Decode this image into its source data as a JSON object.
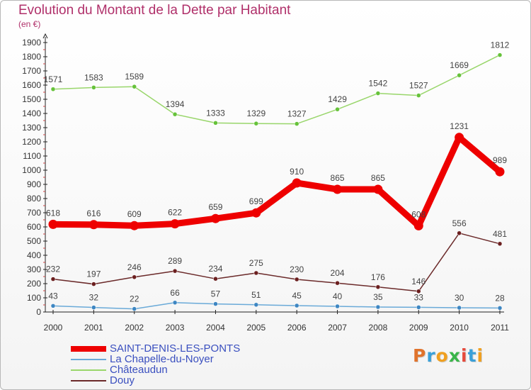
{
  "header": {
    "title": "Evolution du Montant de la Dette par Habitant",
    "unit": "(en €)"
  },
  "logo": {
    "text": "Proxiti",
    "colors": [
      "#e0732c",
      "#3aa0d8",
      "#f0a020",
      "#3ab54a",
      "#e64a3c",
      "#3aa0d8",
      "#f0a020"
    ]
  },
  "chart_data": {
    "type": "line",
    "title": "Evolution du Montant de la Dette par Habitant",
    "ylabel": "(en €)",
    "xlabel": "",
    "categories": [
      "2000",
      "2001",
      "2002",
      "2003",
      "2004",
      "2005",
      "2006",
      "2007",
      "2008",
      "2009",
      "2010",
      "2011"
    ],
    "ylim": [
      0,
      1900
    ],
    "yticks": [
      0,
      100,
      200,
      300,
      400,
      500,
      600,
      700,
      800,
      900,
      1000,
      1100,
      1200,
      1300,
      1400,
      1500,
      1600,
      1700,
      1800,
      1900
    ],
    "grid": false,
    "legend_position": "bottom-left",
    "series": [
      {
        "name": "Châteaudun",
        "color": "#99d66b",
        "values": [
          1571,
          1583,
          1589,
          1394,
          1333,
          1329,
          1327,
          1429,
          1542,
          1527,
          1669,
          1812
        ]
      },
      {
        "name": "Douy",
        "color": "#6b2a2a",
        "values": [
          232,
          197,
          246,
          289,
          234,
          275,
          230,
          204,
          176,
          146,
          556,
          481
        ]
      },
      {
        "name": "La Chapelle-du-Noyer",
        "color": "#6aaad8",
        "values": [
          43,
          32,
          22,
          66,
          57,
          51,
          45,
          40,
          35,
          33,
          30,
          28
        ]
      },
      {
        "name": "SAINT-DENIS-LES-PONTS",
        "color": "#ee0000",
        "values": [
          618,
          616,
          609,
          622,
          659,
          699,
          910,
          865,
          865,
          608,
          1231,
          989
        ]
      }
    ],
    "legend": [
      "SAINT-DENIS-LES-PONTS",
      "La Chapelle-du-Noyer",
      "Châteaudun",
      "Douy"
    ]
  }
}
